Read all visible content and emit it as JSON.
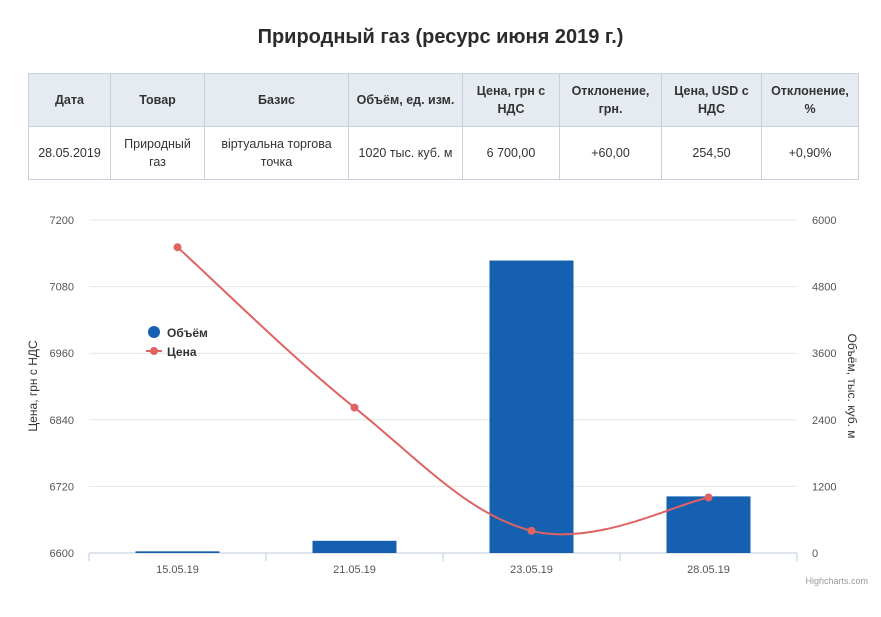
{
  "title": "Природный газ (ресурс июня 2019 г.)",
  "table": {
    "headers": [
      "Дата",
      "Товар",
      "Базис",
      "Объём, ед. изм.",
      "Цена, грн с НДС",
      "Отклонение, грн.",
      "Цена, USD с НДС",
      "Отклонение, %"
    ],
    "row": [
      "28.05.2019",
      "Природный газ",
      "віртуальна торгова точка",
      "1020 тыс. куб. м",
      "6 700,00",
      "+60,00",
      "254,50",
      "+0,90%"
    ],
    "positive_color": "#2e8b2e"
  },
  "chart_data": {
    "type": "bar",
    "categories": [
      "15.05.19",
      "21.05.19",
      "23.05.19",
      "28.05.19"
    ],
    "series": [
      {
        "name": "Объём",
        "type": "bar",
        "axis": "right",
        "color": "#1560b0",
        "values": [
          30,
          220,
          5270,
          1020
        ]
      },
      {
        "name": "Цена",
        "type": "line",
        "axis": "left",
        "color": "#e06363",
        "values": [
          7151,
          6862,
          6640,
          6700
        ]
      }
    ],
    "yaxis_left": {
      "label": "Цена, грн с НДС",
      "ticks": [
        "7200",
        "7080",
        "6960",
        "6840",
        "6720",
        "6600"
      ],
      "min": 6600,
      "max": 7200
    },
    "yaxis_right": {
      "label": "Объём, тыс. куб. м",
      "ticks": [
        "6000",
        "4800",
        "3600",
        "2400",
        "1200",
        "0"
      ],
      "min": 0,
      "max": 6000
    },
    "grid": true,
    "legend_position": "left"
  },
  "credit": "Highcharts.com"
}
